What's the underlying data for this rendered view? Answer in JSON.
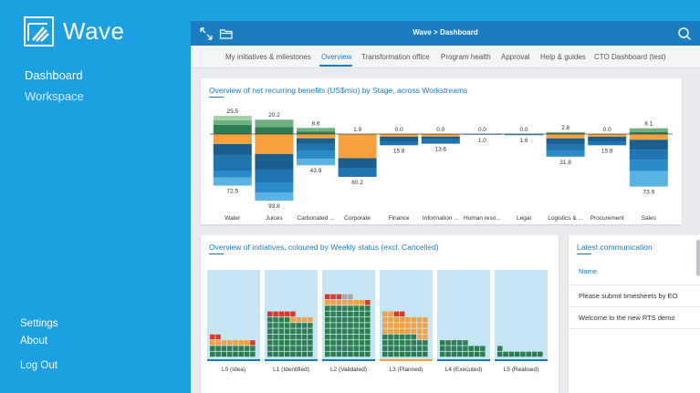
{
  "brand": {
    "name": "Wave"
  },
  "nav": {
    "items": [
      "Dashboard",
      "Workspace"
    ],
    "active": "Dashboard"
  },
  "bottom_nav": {
    "settings": "Settings",
    "about": "About",
    "logout": "Log Out"
  },
  "topbar": {
    "breadcrumb": "Wave  >  Dashboard"
  },
  "tabs": [
    "My initiatives & milestones",
    "Overview",
    "Transformation office",
    "Program health",
    "Approval",
    "Help & guides",
    "CTO Dashboard (test)"
  ],
  "active_tab": "Overview",
  "colors": {
    "brand_blue": "#1ba0e2",
    "topbar": "#1a7dbf",
    "dark_green": "#2e7d4f",
    "light_green": "#9fd0a8",
    "orange": "#f7a13e",
    "dark_blue": "#1a5f8e",
    "mid_blue": "#2a8ccb",
    "light_blue": "#5ab4e3",
    "red": "#d9392b",
    "grey": "#a9a9a9",
    "panel_bg": "#c6e6f6"
  },
  "benefits_card": {
    "title": "Overview of net recurring benefits (US$mio) by Stage, across Workstreams"
  },
  "chart_data": [
    {
      "type": "bar",
      "title": "Overview of net recurring benefits (US$mio) by Stage, across Workstreams",
      "categories": [
        "Water",
        "Juices",
        "Carbonated ...",
        "Corporate",
        "Finance",
        "Information ...",
        "Human reso...",
        "Legal",
        "Logistics & ...",
        "Procurement",
        "Sales"
      ],
      "positive_totals": [
        25.5,
        20.2,
        8.6,
        1.9,
        0.0,
        0.0,
        0.0,
        0.0,
        2.8,
        0.0,
        8.1
      ],
      "negative_totals": [
        72.5,
        93.8,
        43.9,
        60.2,
        15.8,
        13.6,
        1.0,
        1.6,
        31.8,
        15.8,
        73.9
      ],
      "top_labels": [
        "25.5",
        "20.2",
        "8.6",
        "1.9",
        "0.0",
        "0.0",
        "0.0",
        "0.0",
        "2.8",
        "0.0",
        "8.1"
      ],
      "bottom_labels": [
        "72.5",
        "93.8",
        "43.9",
        "60.2",
        "15.8",
        "13.6",
        "1.0",
        "1.6",
        "31.8",
        "15.8",
        "73.9"
      ],
      "positive_segments": [
        [
          13,
          6.5,
          6
        ],
        [
          10,
          10.2
        ],
        [
          3.6,
          5
        ],
        [],
        [],
        [],
        [],
        [],
        [
          1.4,
          1.4
        ],
        [],
        [
          3,
          5.1
        ]
      ],
      "negative_segments": [
        [
          14,
          16,
          22,
          9,
          11.5
        ],
        [
          28,
          22,
          18,
          14,
          11.8
        ],
        [
          6,
          8,
          10,
          11,
          8.9
        ],
        [
          34,
          14,
          12.2
        ],
        [
          3.8,
          7,
          5
        ],
        [
          3.6,
          4,
          6
        ],
        [
          1
        ],
        [
          1.6
        ],
        [
          6,
          9,
          8,
          8.8
        ],
        [
          3.8,
          7,
          5
        ],
        [
          8,
          14,
          14,
          16,
          21.9
        ]
      ],
      "positive_colors": [
        "#2e7d4f",
        "#6fb07f",
        "#9fd0a8"
      ],
      "negative_colors": [
        "#f7a13e",
        "#1a5f8e",
        "#1e75b0",
        "#2a8ccb",
        "#5ab4e3"
      ]
    },
    {
      "type": "waffle",
      "title": "Overview of initiatives, coloured by Weekly status (excl. Cancelled)",
      "categories": [
        "L0 (Idea)",
        "L1 (Identified)",
        "L2 (Validated)",
        "L3 (Planned)",
        "L4 (Executed)",
        "L5 (Realised)"
      ],
      "counts": {
        "green": [
          16,
          52,
          72,
          30,
          21,
          9
        ],
        "orange": [
          7,
          4,
          7,
          28,
          0,
          0
        ],
        "red": [
          3,
          5,
          4,
          2,
          0,
          0
        ],
        "grey": [
          0,
          0,
          2,
          0,
          0,
          0
        ]
      }
    }
  ],
  "initiatives_card": {
    "title": "Overview of initiatives, coloured by Weekly status (excl. Cancelled)"
  },
  "communication_card": {
    "title": "Latest communication",
    "column": "Name",
    "rows": [
      "Please submit timesheets by EO",
      "Welcome to the new RTS demo"
    ]
  },
  "icons": {
    "expand": "expand-icon",
    "folder": "folder-icon",
    "search": "search-icon",
    "logo": "wave-logo-icon"
  }
}
